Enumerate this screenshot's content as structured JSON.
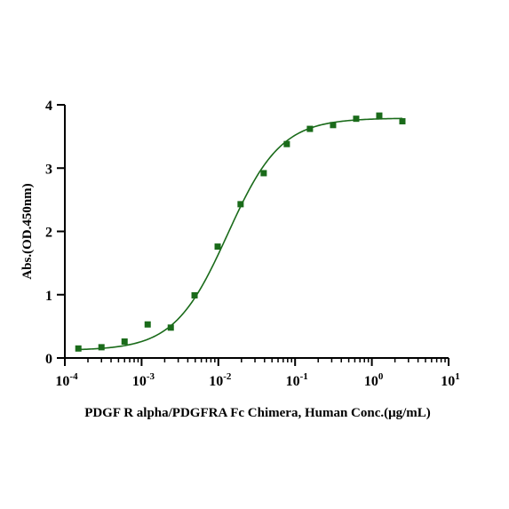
{
  "chart_data": {
    "type": "scatter",
    "xlabel": "PDGF R alpha/PDGFRA Fc Chimera, Human Conc.(μg/mL)",
    "ylabel": "Abs.(OD.450nm)",
    "x_scale": "log",
    "xlim": [
      0.0001,
      10
    ],
    "ylim": [
      0,
      4
    ],
    "x_ticks": [
      {
        "base": "10",
        "exp": "-4",
        "value": 0.0001
      },
      {
        "base": "10",
        "exp": "-3",
        "value": 0.001
      },
      {
        "base": "10",
        "exp": "-2",
        "value": 0.01
      },
      {
        "base": "10",
        "exp": "-1",
        "value": 0.1
      },
      {
        "base": "10",
        "exp": "0",
        "value": 1
      },
      {
        "base": "10",
        "exp": "1",
        "value": 10
      }
    ],
    "y_ticks": [
      "0",
      "1",
      "2",
      "3",
      "4"
    ],
    "grid": false,
    "series": [
      {
        "color": "#1a6b1a",
        "marker": "square",
        "points": [
          {
            "x": 0.00015,
            "y": 0.15
          },
          {
            "x": 0.0003,
            "y": 0.17
          },
          {
            "x": 0.0006,
            "y": 0.26
          },
          {
            "x": 0.0012,
            "y": 0.53
          },
          {
            "x": 0.0024,
            "y": 0.48
          },
          {
            "x": 0.0049,
            "y": 0.99
          },
          {
            "x": 0.0098,
            "y": 1.76
          },
          {
            "x": 0.0195,
            "y": 2.43
          },
          {
            "x": 0.039,
            "y": 2.92
          },
          {
            "x": 0.078,
            "y": 3.38
          },
          {
            "x": 0.156,
            "y": 3.62
          },
          {
            "x": 0.3125,
            "y": 3.68
          },
          {
            "x": 0.625,
            "y": 3.78
          },
          {
            "x": 1.25,
            "y": 3.83
          },
          {
            "x": 2.5,
            "y": 3.74
          }
        ],
        "fit": {
          "model": "4PL",
          "bottom": 0.12,
          "top": 3.79,
          "ec50": 0.0132,
          "hill": 1.25,
          "x_range": [
            0.00015,
            2.5
          ]
        }
      }
    ]
  }
}
